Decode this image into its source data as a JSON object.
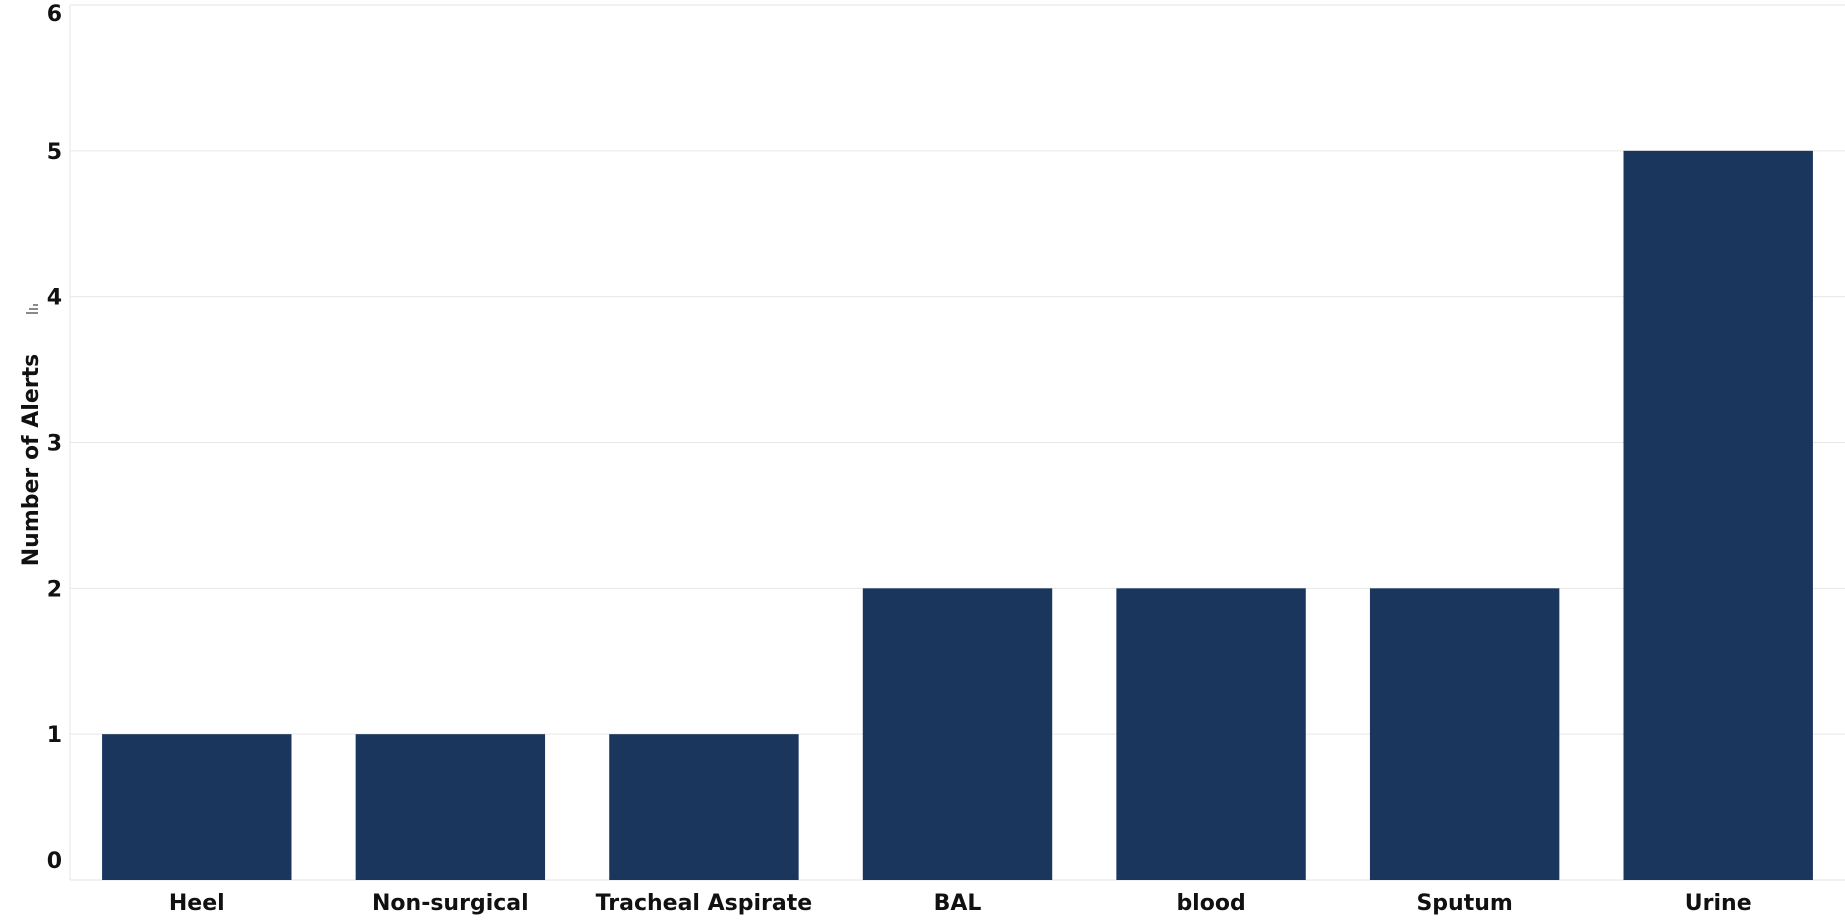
{
  "chart_data": {
    "type": "bar",
    "title": "",
    "xlabel": "",
    "ylabel": "Number of Alerts",
    "categories": [
      "Heel",
      "Non-surgical",
      "Tracheal Aspirate",
      "BAL",
      "blood",
      "Sputum",
      "Urine"
    ],
    "values": [
      1,
      1,
      1,
      2,
      2,
      2,
      5
    ],
    "ylim": [
      0,
      6
    ],
    "yticks": [
      0,
      1,
      2,
      3,
      4,
      5,
      6
    ],
    "grid": true,
    "legend": "none",
    "colors": {
      "bar": "#1b365d",
      "grid": "#e6e6e6",
      "text": "#111111"
    },
    "ylabel_icon": "sort-descending-icon"
  }
}
